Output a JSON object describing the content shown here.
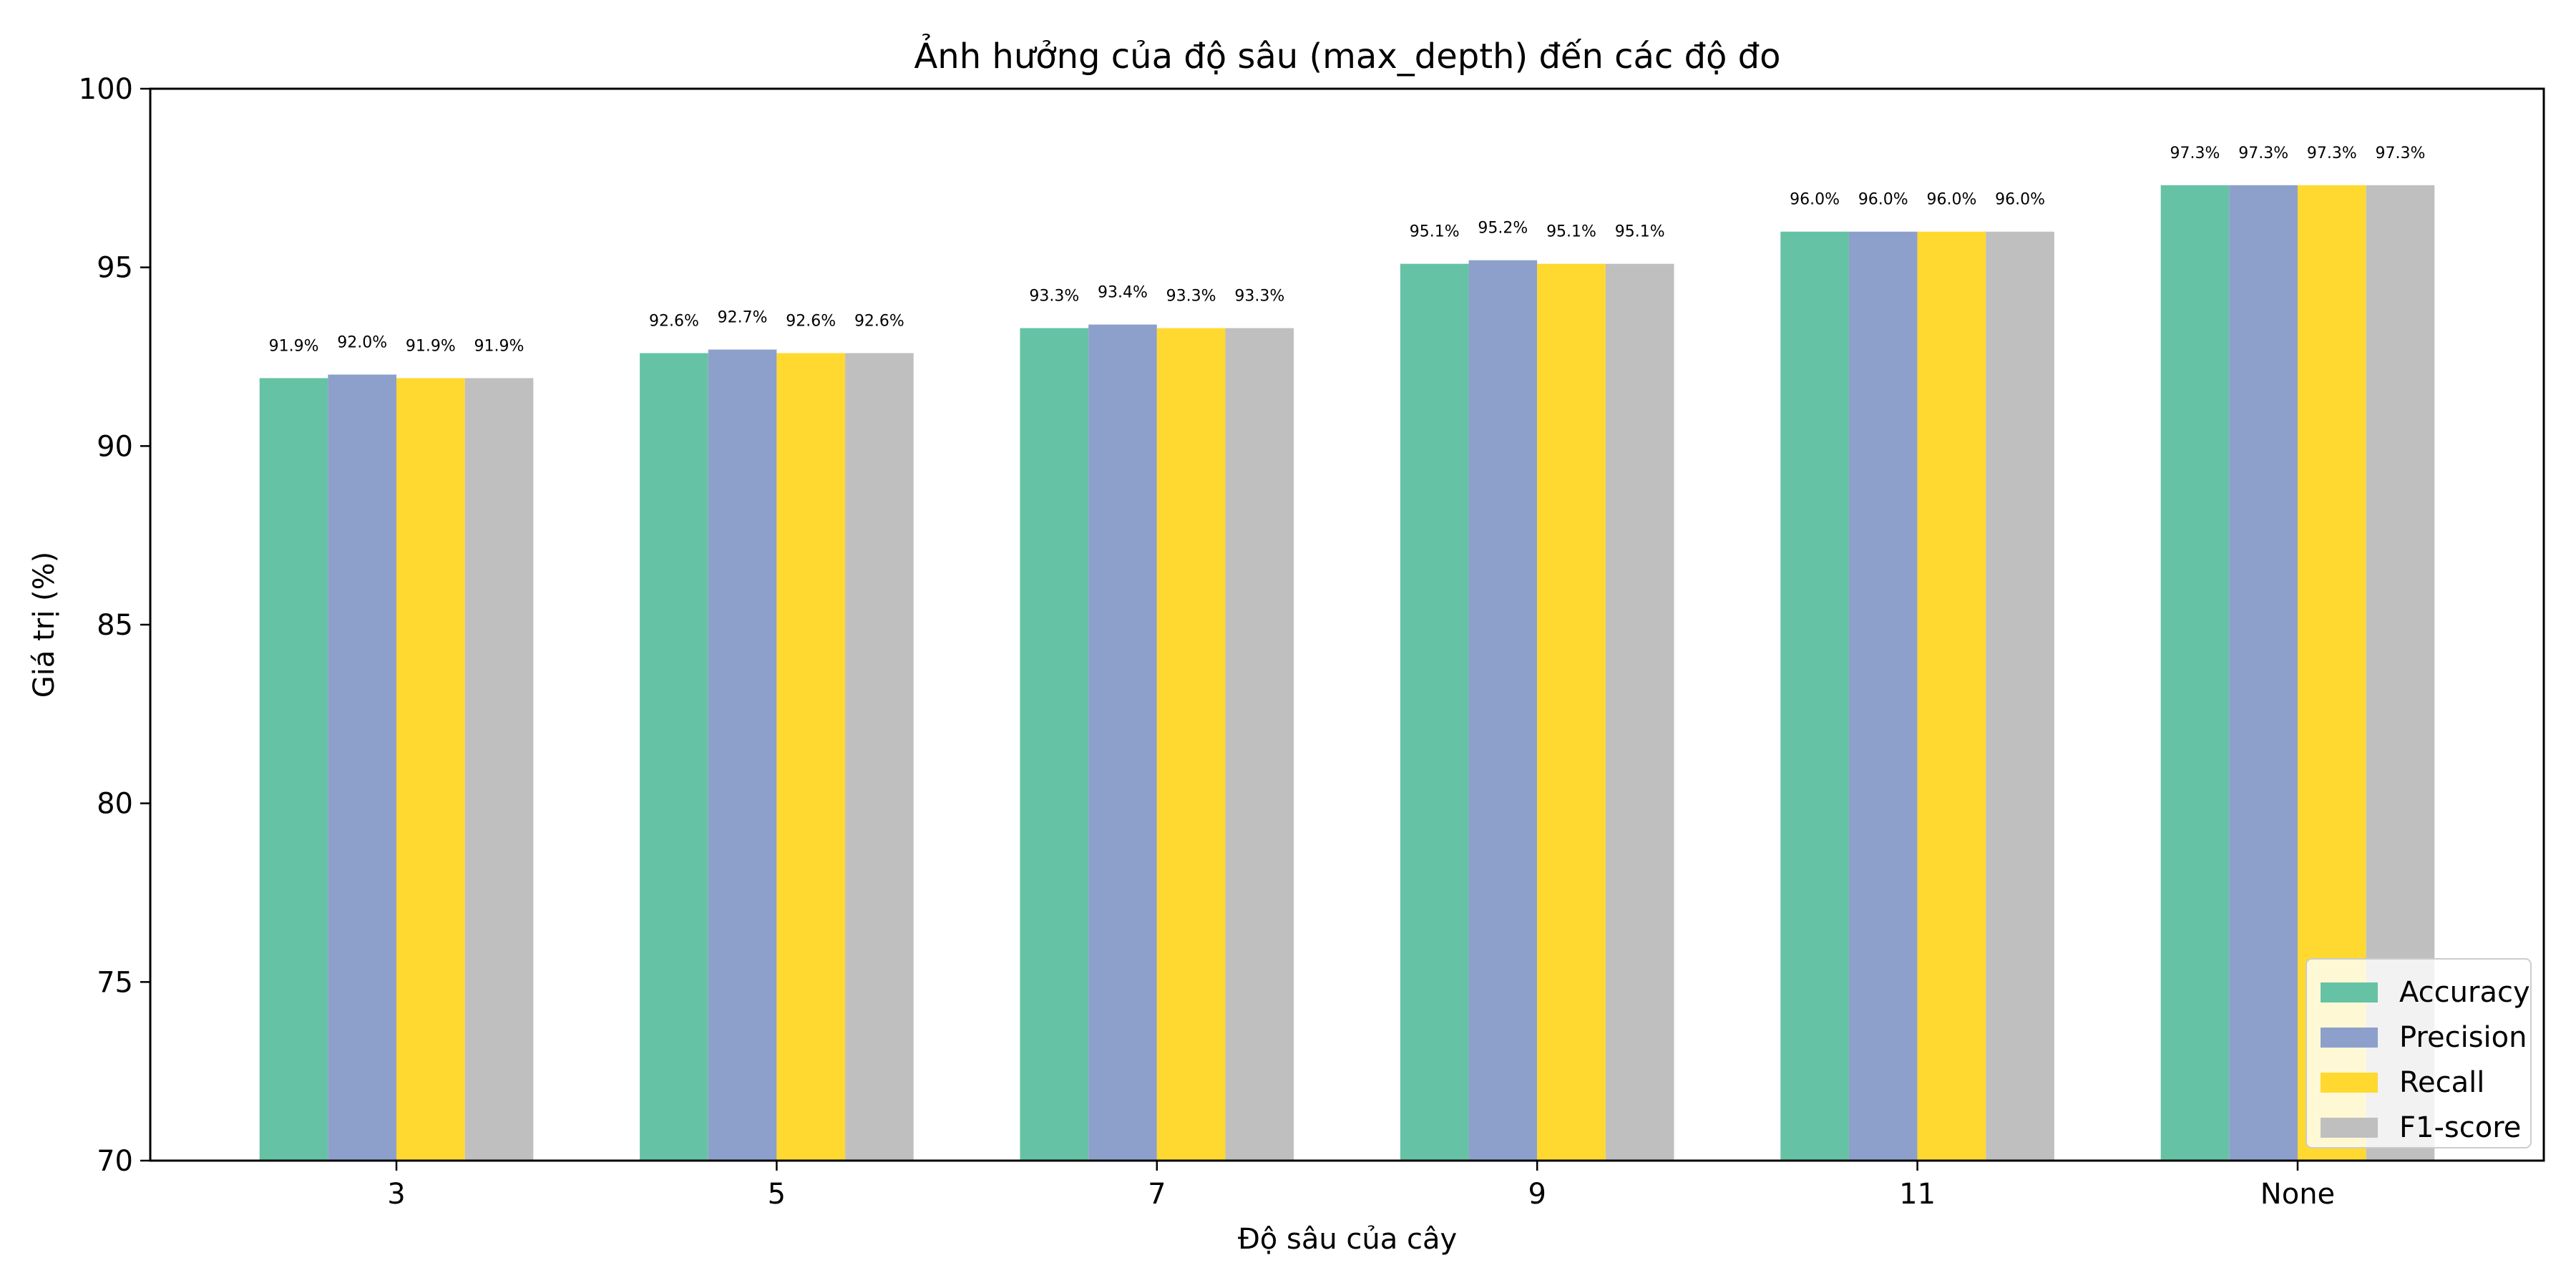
{
  "chart_data": {
    "type": "bar",
    "title": "Ảnh hưởng của độ sâu (max_depth) đến các độ đo",
    "xlabel": "Độ sâu của cây",
    "ylabel": "Giá trị (%)",
    "categories": [
      "3",
      "5",
      "7",
      "9",
      "11",
      "None"
    ],
    "ylim": [
      70,
      100
    ],
    "yticks": [
      70,
      75,
      80,
      85,
      90,
      95,
      100
    ],
    "series": [
      {
        "name": "Accuracy",
        "color": "#66c2a5",
        "values": [
          91.9,
          92.6,
          93.3,
          95.1,
          96.0,
          97.3
        ]
      },
      {
        "name": "Precision",
        "color": "#8da0cb",
        "values": [
          92.0,
          92.7,
          93.4,
          95.2,
          96.0,
          97.3
        ]
      },
      {
        "name": "Recall",
        "color": "#ffd92f",
        "values": [
          91.9,
          92.6,
          93.3,
          95.1,
          96.0,
          97.3
        ]
      },
      {
        "name": "F1-score",
        "color": "#bfbfbf",
        "values": [
          91.9,
          92.6,
          93.3,
          95.1,
          96.0,
          97.3
        ]
      }
    ],
    "data_labels": [
      [
        "91.9%",
        "92.6%",
        "93.3%",
        "95.1%",
        "96.0%",
        "97.3%"
      ],
      [
        "92.0%",
        "92.7%",
        "93.4%",
        "95.2%",
        "96.0%",
        "97.3%"
      ],
      [
        "91.9%",
        "92.6%",
        "93.3%",
        "95.1%",
        "96.0%",
        "97.3%"
      ],
      [
        "91.9%",
        "92.6%",
        "93.3%",
        "95.1%",
        "96.0%",
        "97.3%"
      ]
    ],
    "legend": "lower-right",
    "grid": false
  }
}
